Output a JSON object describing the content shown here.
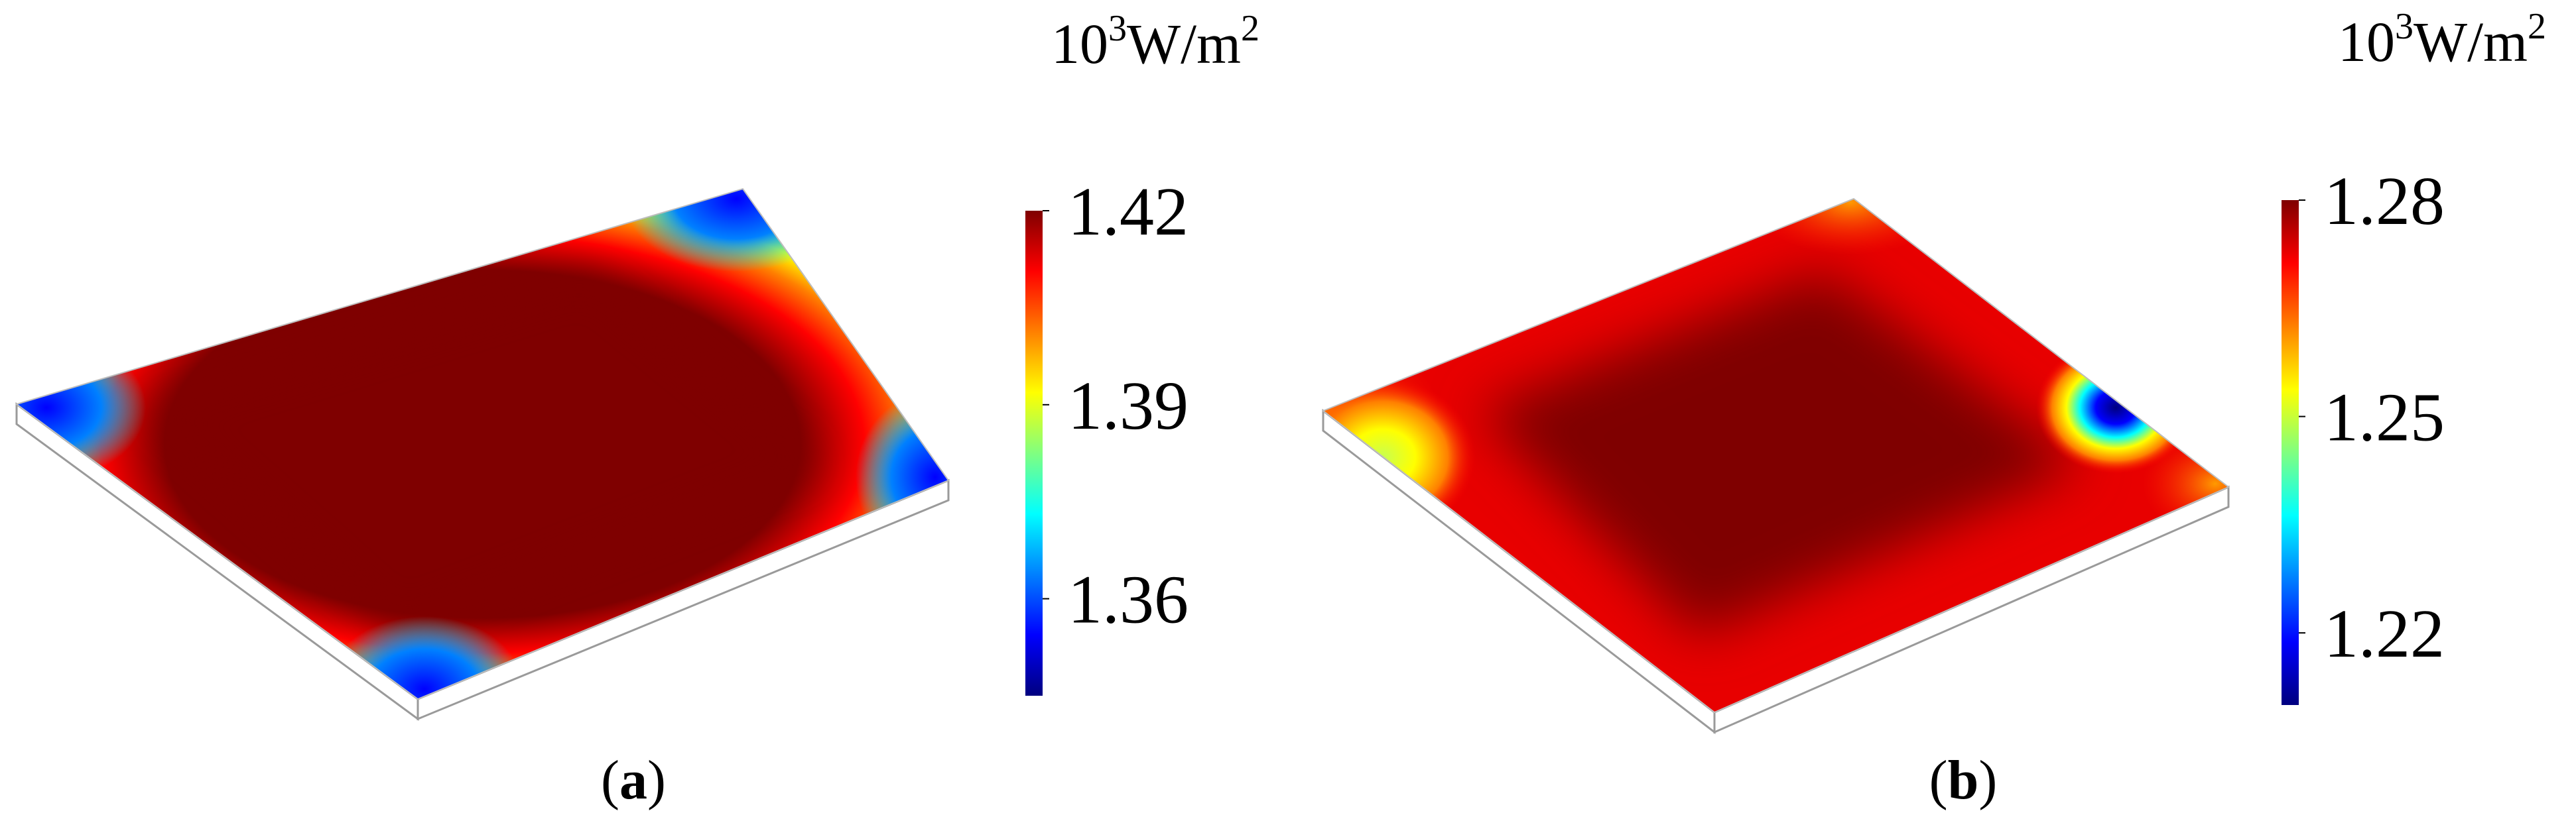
{
  "colormap": {
    "stops": [
      "#00007f",
      "#0000ff",
      "#0080ff",
      "#00ffff",
      "#80ff80",
      "#ffff00",
      "#ff8000",
      "#ff0000",
      "#7f0000"
    ]
  },
  "panels": [
    {
      "id": "a",
      "caption_open": "(",
      "caption_letter": "a",
      "caption_close": ")",
      "unit_base": "10",
      "unit_exp": "3",
      "unit_rest": "W/m",
      "unit_exp2": "2",
      "colorbar_range": [
        1.345,
        1.42
      ],
      "ticks": [
        {
          "label": "1.42",
          "value": 1.42
        },
        {
          "label": "1.39",
          "value": 1.39
        },
        {
          "label": "1.36",
          "value": 1.36
        }
      ],
      "plate_colors": {
        "core": "#7f0000",
        "ring_outer": "#ff0000",
        "ring_mid": "#ffff00",
        "edge": "#00ffff",
        "corner": "#0000ff"
      }
    },
    {
      "id": "b",
      "caption_open": "(",
      "caption_letter": "b",
      "caption_close": ")",
      "unit_base": "10",
      "unit_exp": "3",
      "unit_rest": "W/m",
      "unit_exp2": "2",
      "colorbar_range": [
        1.21,
        1.28
      ],
      "ticks": [
        {
          "label": "1.28",
          "value": 1.28
        },
        {
          "label": "1.25",
          "value": 1.25
        },
        {
          "label": "1.22",
          "value": 1.22
        }
      ],
      "plate_colors": {
        "core": "#7f0000",
        "field": "#e60000",
        "warm_corner": "#ff9a00",
        "hot_left": "#c8ff50",
        "hot_right_ring": "#ffff00",
        "hot_right_mid": "#00ffff",
        "hot_right_core": "#00007f"
      }
    }
  ]
}
